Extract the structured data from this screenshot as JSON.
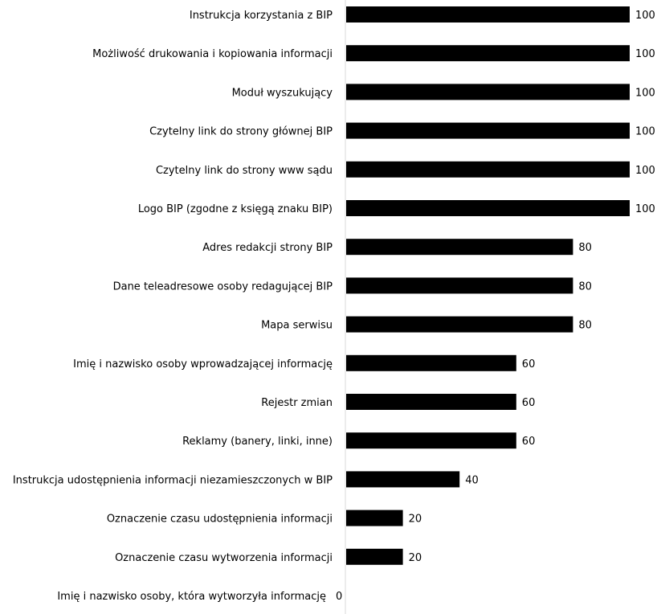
{
  "chart_data": {
    "type": "bar",
    "orientation": "horizontal",
    "title": "",
    "xlabel": "",
    "ylabel": "",
    "xlim": [
      0,
      100
    ],
    "grid": false,
    "bar_color": "#000000",
    "axis_color": "#d9d9d9",
    "categories": [
      "Instrukcja korzystania z BIP",
      "Możliwość drukowania i kopiowania informacji",
      "Moduł wyszukujący",
      "Czytelny link do strony głównej BIP",
      "Czytelny link do strony www sądu",
      "Logo BIP (zgodne z księgą znaku BIP)",
      "Adres redakcji strony BIP",
      "Dane teleadresowe osoby redagującej BIP",
      "Mapa serwisu",
      "Imię i nazwisko osoby wprowadzającej informację",
      "Rejestr zmian",
      "Reklamy (banery, linki, inne)",
      "Instrukcja udostępnienia informacji niezamieszczonych w BIP",
      "Oznaczenie czasu udostępnienia informacji",
      "Oznaczenie czasu wytworzenia informacji",
      "Imię i nazwisko osoby, która wytworzyła informację"
    ],
    "values": [
      100,
      100,
      100,
      100,
      100,
      100,
      80,
      80,
      80,
      60,
      60,
      60,
      40,
      20,
      20,
      0
    ],
    "value_labels": [
      "100",
      "100",
      "100",
      "100",
      "100",
      "100",
      "80",
      "80",
      "80",
      "60",
      "60",
      "60",
      "40",
      "20",
      "20",
      "0"
    ]
  }
}
